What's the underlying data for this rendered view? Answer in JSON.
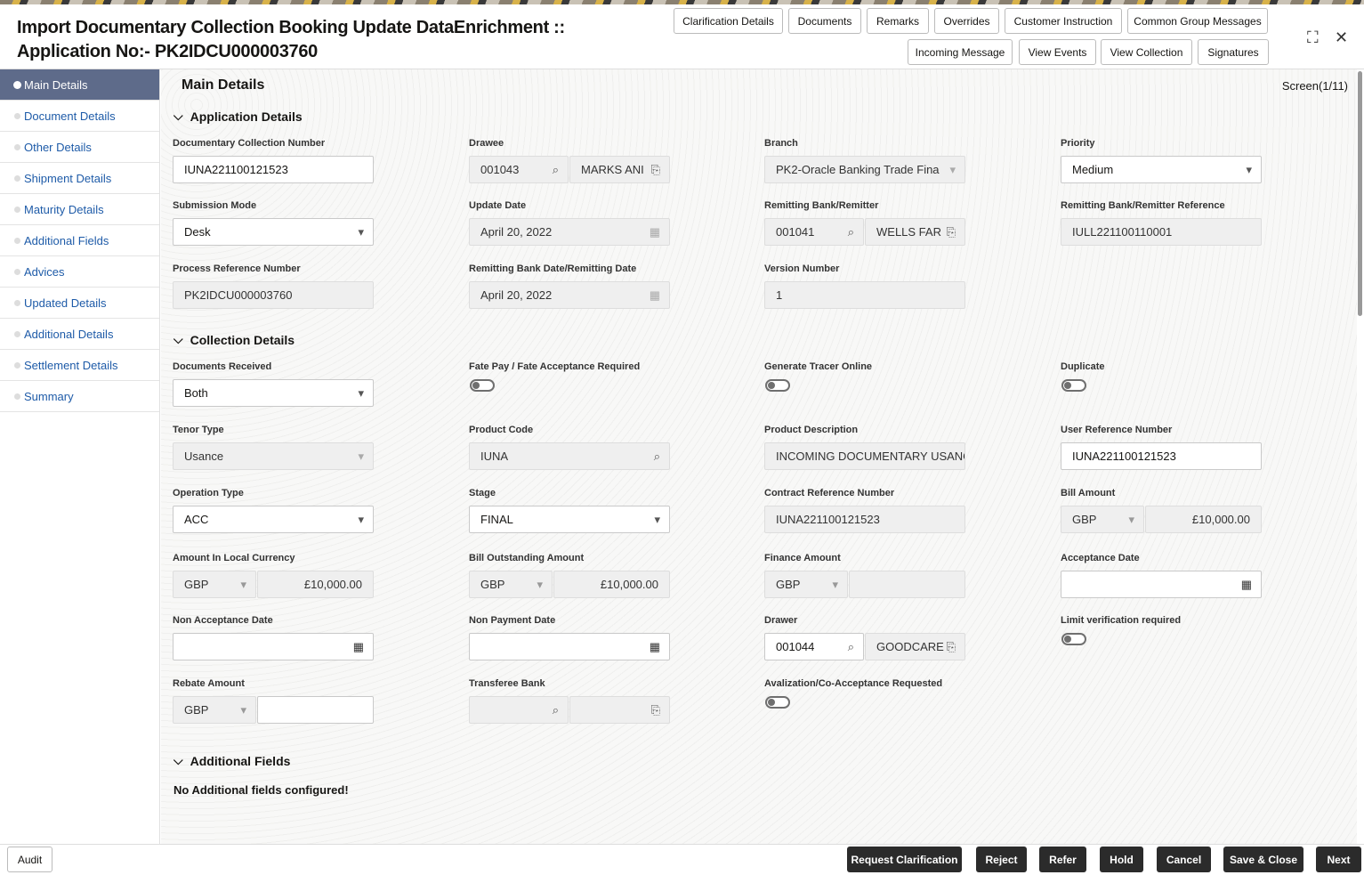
{
  "header": {
    "title_line1": "Import Documentary Collection Booking Update DataEnrichment ::",
    "title_line2": "Application No:- PK2IDCU000003760",
    "buttons_row1": [
      "Clarification Details",
      "Documents",
      "Remarks",
      "Overrides",
      "Customer Instruction",
      "Common Group Messages"
    ],
    "buttons_row2": [
      "Incoming Message",
      "View Events",
      "View Collection",
      "Signatures"
    ]
  },
  "sidebar": {
    "items": [
      "Main Details",
      "Document Details",
      "Other Details",
      "Shipment Details",
      "Maturity Details",
      "Additional Fields",
      "Advices",
      "Updated Details",
      "Additional Details",
      "Settlement Details",
      "Summary"
    ],
    "active": 0
  },
  "main": {
    "title": "Main Details",
    "screen": "Screen(1/11)",
    "sections": {
      "application": "Application Details",
      "collection": "Collection Details",
      "additional": "Additional Fields"
    },
    "no_additional": "No Additional fields configured!"
  },
  "fields": [
    {
      "label": "Documentary Collection Number",
      "type": "text",
      "value": "IUNA221100121523"
    },
    {
      "label": "Drawee",
      "type": "lookup",
      "code": "001043",
      "name": "MARKS ANI",
      "ro": true
    },
    {
      "label": "Branch",
      "type": "select",
      "value": "PK2-Oracle Banking Trade Fina",
      "ro": true
    },
    {
      "label": "Priority",
      "type": "select",
      "value": "Medium"
    },
    {
      "label": "Submission Mode",
      "type": "select",
      "value": "Desk"
    },
    {
      "label": "Update Date",
      "type": "date",
      "value": "April 20, 2022",
      "ro": true
    },
    {
      "label": "Remitting Bank/Remitter",
      "type": "lookup",
      "code": "001041",
      "name": "WELLS FAR",
      "ro": true
    },
    {
      "label": "Remitting Bank/Remitter Reference",
      "type": "text",
      "value": "IULL221100110001",
      "ro": true
    },
    {
      "label": "Process Reference Number",
      "type": "text",
      "value": "PK2IDCU000003760",
      "ro": true
    },
    {
      "label": "Remitting Bank Date/Remitting Date",
      "type": "date",
      "value": "April 20, 2022",
      "ro": true
    },
    {
      "label": "Version Number",
      "type": "text",
      "value": "1",
      "ro": true
    },
    null,
    {
      "label": "Documents Received",
      "type": "select",
      "value": "Both"
    },
    {
      "label": "Fate Pay / Fate Acceptance Required",
      "type": "toggle",
      "on": false
    },
    {
      "label": "Generate Tracer Online",
      "type": "toggle",
      "on": false
    },
    {
      "label": "Duplicate",
      "type": "toggle",
      "on": false
    },
    {
      "label": "Tenor Type",
      "type": "select",
      "value": "Usance",
      "ro": true
    },
    {
      "label": "Product Code",
      "type": "search",
      "value": "IUNA",
      "ro": true
    },
    {
      "label": "Product Description",
      "type": "text",
      "value": "INCOMING DOCUMENTARY USANC",
      "ro": true
    },
    {
      "label": "User Reference Number",
      "type": "text",
      "value": "IUNA221100121523"
    },
    {
      "label": "Operation Type",
      "type": "select",
      "value": "ACC"
    },
    {
      "label": "Stage",
      "type": "select",
      "value": "FINAL"
    },
    {
      "label": "Contract Reference Number",
      "type": "text",
      "value": "IUNA221100121523",
      "ro": true
    },
    {
      "label": "Bill Amount",
      "type": "currency",
      "ccy": "GBP",
      "amount": "£10,000.00",
      "ro": true
    },
    {
      "label": "Amount In Local Currency",
      "type": "currency",
      "ccy": "GBP",
      "amount": "£10,000.00",
      "ro": true
    },
    {
      "label": "Bill Outstanding Amount",
      "type": "currency",
      "ccy": "GBP",
      "amount": "£10,000.00",
      "ro": true
    },
    {
      "label": "Finance Amount",
      "type": "currency",
      "ccy": "GBP",
      "amount": "",
      "ro": true
    },
    {
      "label": "Acceptance Date",
      "type": "date",
      "value": ""
    },
    {
      "label": "Non Acceptance Date",
      "type": "date",
      "value": ""
    },
    {
      "label": "Non Payment Date",
      "type": "date",
      "value": ""
    },
    {
      "label": "Drawer",
      "type": "lookup",
      "code": "001044",
      "name": "GOODCARE"
    },
    {
      "label": "Limit verification required",
      "type": "toggle",
      "on": false
    },
    {
      "label": "Rebate Amount",
      "type": "currency",
      "ccy": "GBP",
      "amount": "",
      "rocy": true
    },
    {
      "label": "Transferee Bank",
      "type": "lookup",
      "code": "",
      "name": "",
      "ro": true
    },
    {
      "label": "Avalization/Co-Acceptance Requested",
      "type": "toggle",
      "on": false
    },
    null
  ],
  "footer": {
    "audit": "Audit",
    "buttons": [
      "Request Clarification",
      "Reject",
      "Refer",
      "Hold",
      "Cancel",
      "Save & Close",
      "Next"
    ]
  }
}
